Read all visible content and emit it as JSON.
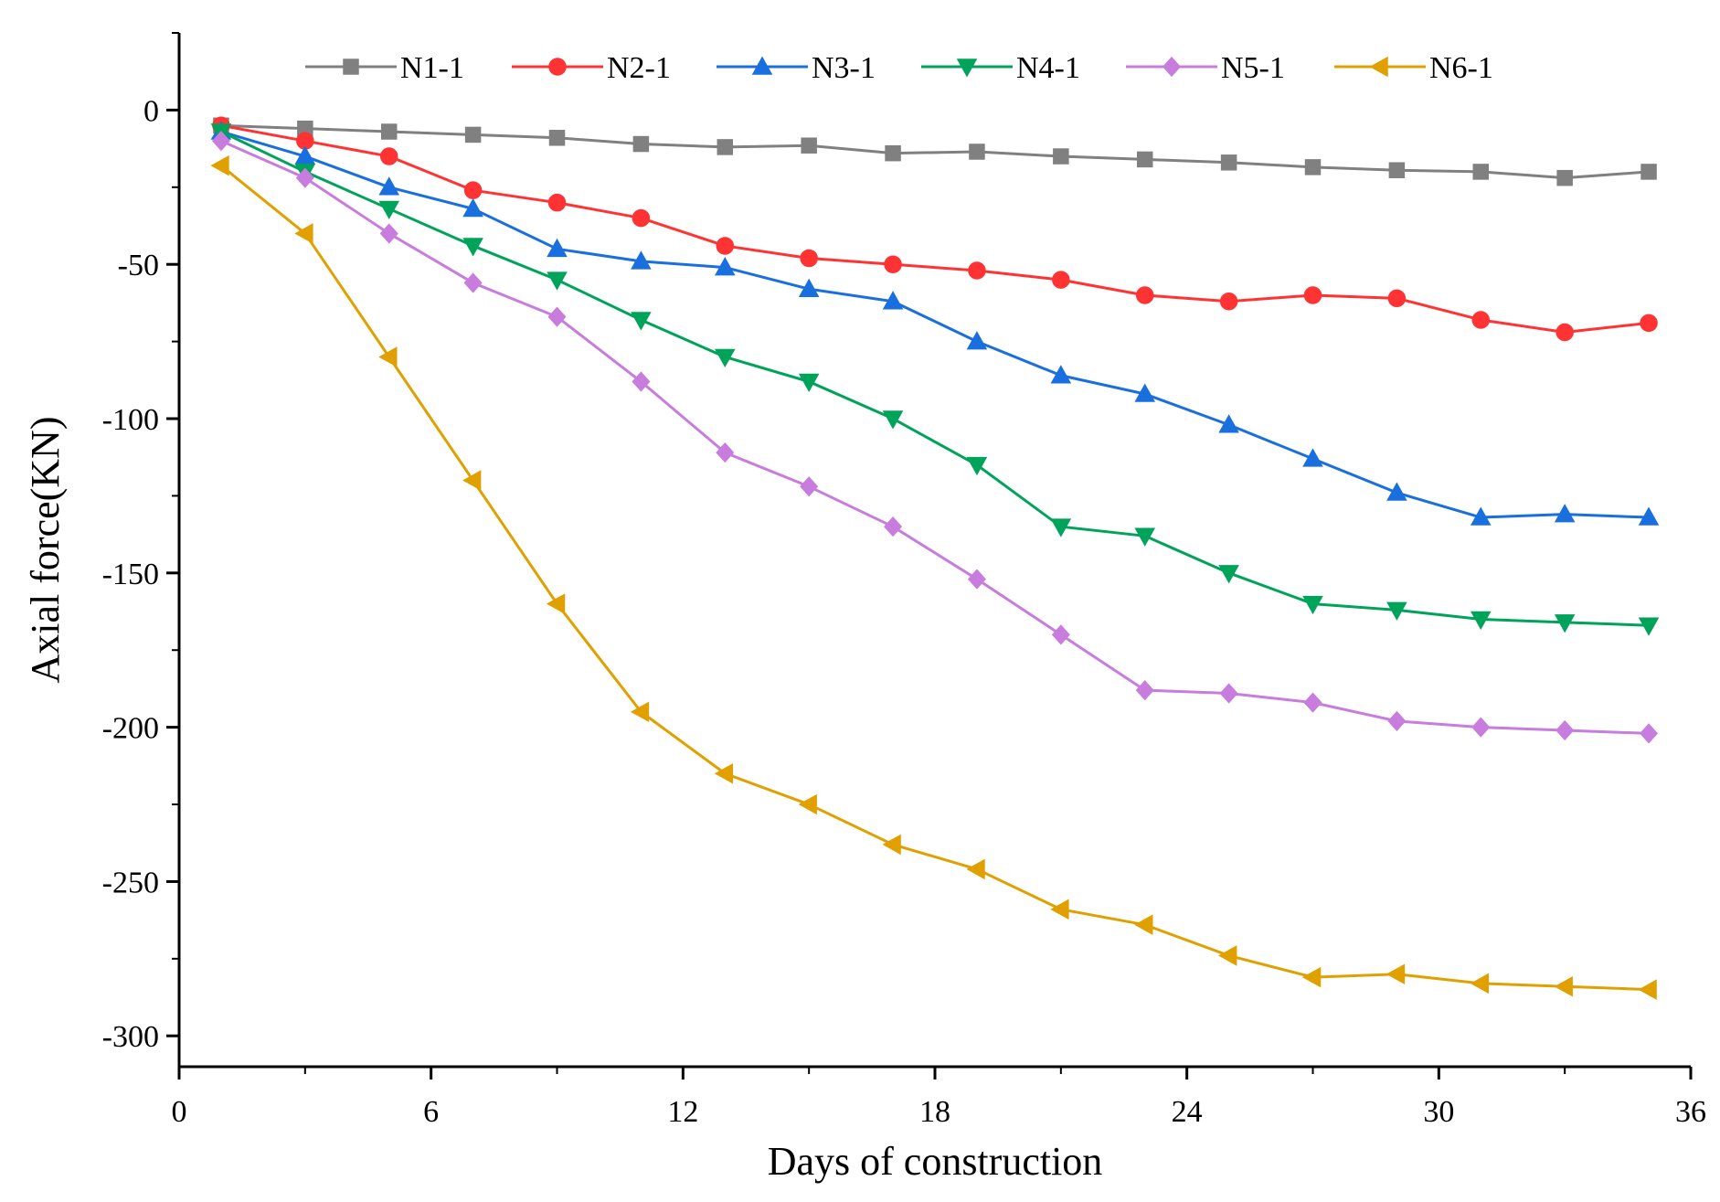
{
  "chart_data": {
    "type": "line",
    "xlabel": "Days of construction",
    "ylabel": "Axial force(KN)",
    "xlim": [
      0,
      36
    ],
    "ylim": [
      -310,
      25
    ],
    "x_ticks": [
      0,
      6,
      12,
      18,
      24,
      30,
      36
    ],
    "y_ticks": [
      0,
      -50,
      -100,
      -150,
      -200,
      -250,
      -300
    ],
    "grid": false,
    "legend_position": "top",
    "x": [
      1,
      3,
      5,
      7,
      9,
      11,
      13,
      15,
      17,
      19,
      21,
      23,
      25,
      27,
      29,
      31,
      33,
      35
    ],
    "series": [
      {
        "name": "N1-1",
        "color": "#808080",
        "marker": "square",
        "values": [
          -5,
          -6,
          -7,
          -8,
          -9,
          -11,
          -12,
          -11.5,
          -14,
          -13.5,
          -15,
          -16,
          -17,
          -18.5,
          -19.5,
          -20,
          -22,
          -20
        ]
      },
      {
        "name": "N2-1",
        "color": "#ff3333",
        "marker": "circle",
        "values": [
          -5,
          -10,
          -15,
          -26,
          -30,
          -35,
          -44,
          -48,
          -50,
          -52,
          -55,
          -60,
          -62,
          -60,
          -61,
          -68,
          -72,
          -69
        ]
      },
      {
        "name": "N3-1",
        "color": "#1a6fdf",
        "marker": "triangle-up",
        "values": [
          -7,
          -15,
          -25,
          -32,
          -45,
          -49,
          -51,
          -58,
          -62,
          -75,
          -86,
          -92,
          -102,
          -113,
          -124,
          -132,
          -131,
          -132
        ]
      },
      {
        "name": "N4-1",
        "color": "#00a35a",
        "marker": "triangle-down",
        "values": [
          -7,
          -20,
          -32,
          -44,
          -55,
          -68,
          -80,
          -88,
          -100,
          -115,
          -135,
          -138,
          -150,
          -160,
          -162,
          -165,
          -166,
          -167
        ]
      },
      {
        "name": "N5-1",
        "color": "#c77cde",
        "marker": "diamond",
        "values": [
          -10,
          -22,
          -40,
          -56,
          -67,
          -88,
          -111,
          -122,
          -135,
          -152,
          -170,
          -188,
          -189,
          -192,
          -198,
          -200,
          -201,
          -202
        ]
      },
      {
        "name": "N6-1",
        "color": "#e0a000",
        "marker": "triangle-left",
        "values": [
          -18,
          -40,
          -80,
          -120,
          -160,
          -195,
          -215,
          -225,
          -238,
          -246,
          -259,
          -264,
          -274,
          -281,
          -280,
          -283,
          -284,
          -285
        ]
      }
    ]
  }
}
